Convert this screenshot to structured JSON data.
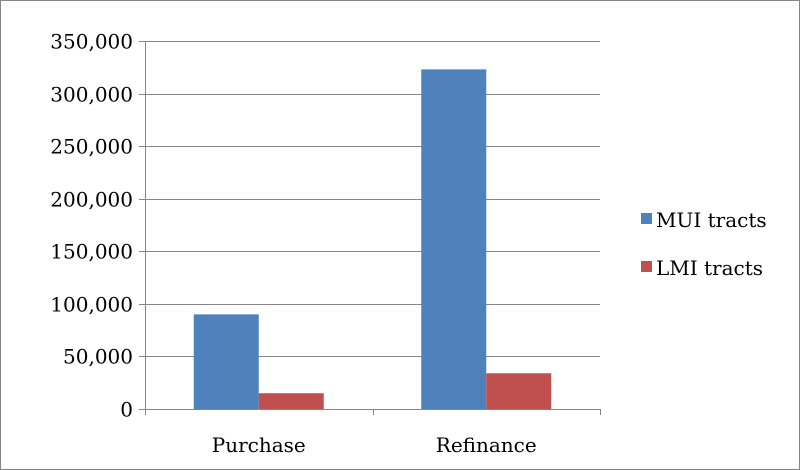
{
  "chart_data": {
    "type": "bar",
    "title": "",
    "xlabel": "",
    "ylabel": "",
    "categories": [
      "Purchase",
      "Refinance"
    ],
    "series": [
      {
        "name": "MUI tracts",
        "values": [
          90000,
          323000
        ],
        "color": "#4f81bd"
      },
      {
        "name": "LMI tracts",
        "values": [
          15000,
          34000
        ],
        "color": "#c0504d"
      }
    ],
    "ylim": [
      0,
      350000
    ],
    "yticks": [
      0,
      50000,
      100000,
      150000,
      200000,
      250000,
      300000,
      350000
    ],
    "ytick_labels": [
      "0",
      "50,000",
      "100,000",
      "150,000",
      "200,000",
      "250,000",
      "300,000",
      "350,000"
    ],
    "grid": true,
    "legend_position": "right"
  }
}
